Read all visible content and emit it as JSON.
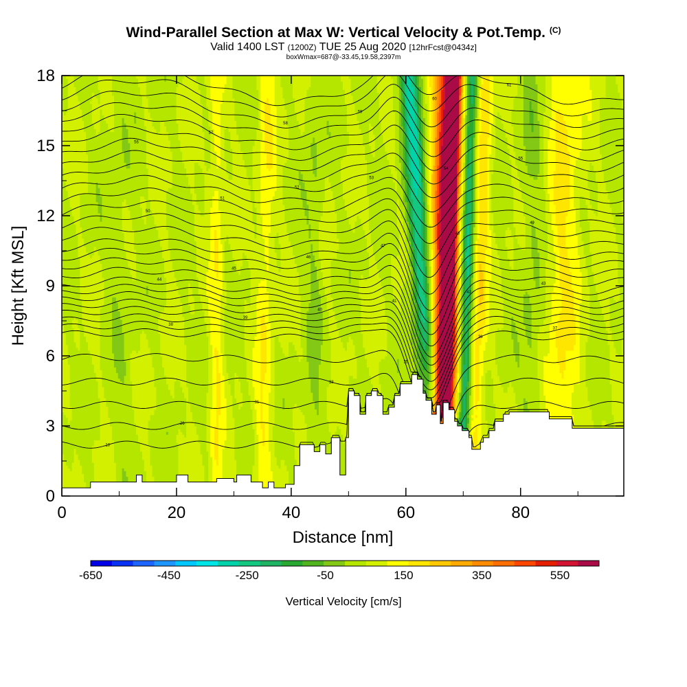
{
  "title": {
    "main": "Wind-Parallel Section at Max W: Vertical Velocity & Pot.Temp.",
    "copyright": "(C)",
    "valid_prefix": "Valid 1400 LST",
    "valid_z": "(1200Z)",
    "valid_date": "TUE 25 Aug 2020",
    "valid_fcst": "[12hrFcst@0434z]",
    "box": "boxWmax=687@-33.45,19.58,2397m"
  },
  "chart_data": {
    "type": "heatmap",
    "xlabel": "Distance [nm]",
    "ylabel": "Height [Kft MSL]",
    "xlim": [
      0,
      98
    ],
    "ylim": [
      0,
      18
    ],
    "xticks": [
      0,
      20,
      40,
      60,
      80
    ],
    "yticks": [
      0,
      3,
      6,
      9,
      12,
      15,
      18
    ],
    "colorbar": {
      "label": "Vertical Velocity [cm/s]",
      "range": [
        -650,
        650
      ],
      "ticks": [
        -650,
        -450,
        -250,
        -50,
        150,
        350,
        550
      ],
      "colors": [
        "#0000e6",
        "#0a32f5",
        "#1e64ff",
        "#1e96ff",
        "#00c8ff",
        "#00e6e6",
        "#00d2aa",
        "#14c882",
        "#1eb464",
        "#28aa32",
        "#50b41e",
        "#82c814",
        "#b4e600",
        "#d2f000",
        "#ffff00",
        "#ffe600",
        "#ffc800",
        "#ffaa00",
        "#ff8c00",
        "#ff6e00",
        "#ff4600",
        "#e61e00",
        "#d21432",
        "#aa0a46"
      ]
    },
    "background_w": 50,
    "w_features": [
      {
        "x": 67.2,
        "x_bottom": 66.7,
        "x_top": 68.5,
        "w": 640,
        "width": 0.8
      },
      {
        "x": 66.5,
        "x_bottom": 66.3,
        "x_top": 67.8,
        "w": 450,
        "width": 1.8
      },
      {
        "x": 65.8,
        "x_bottom": 65.8,
        "x_top": 67.0,
        "w": 250,
        "width": 3.2
      },
      {
        "x": 64.0,
        "x_bottom": 64.5,
        "x_top": 60.5,
        "w": -250,
        "width": 1.6
      },
      {
        "x": 65.0,
        "x_bottom": 65.0,
        "x_top": 61.5,
        "w": -100,
        "width": 2.6
      },
      {
        "x": 70.5,
        "x_bottom": 70.0,
        "x_top": 71.5,
        "w": -300,
        "width": 1.1
      },
      {
        "x": 72.0,
        "x_bottom": 72.0,
        "x_top": 74.0,
        "w": 150,
        "width": 1.4
      },
      {
        "x": 88.0,
        "x_bottom": 87.0,
        "x_top": 88.0,
        "w": 120,
        "width": 3.0
      },
      {
        "x": 82.0,
        "x_bottom": 82.0,
        "x_top": 82.0,
        "w": -60,
        "width": 2.0
      },
      {
        "x": 35.0,
        "x_bottom": 35.0,
        "x_top": 36.0,
        "w": 100,
        "width": 1.5
      },
      {
        "x": 27.0,
        "x_bottom": 27.0,
        "x_top": 27.0,
        "w": 100,
        "width": 1.2
      },
      {
        "x": 44.0,
        "x_bottom": 44.0,
        "x_top": 44.0,
        "w": -50,
        "width": 1.5
      },
      {
        "x": 10.0,
        "x_bottom": 10.0,
        "x_top": 10.0,
        "w": -30,
        "width": 2.5
      }
    ],
    "terrain": [
      [
        0,
        0.35
      ],
      [
        5,
        0.35
      ],
      [
        5,
        0.6
      ],
      [
        13,
        0.6
      ],
      [
        13,
        0.9
      ],
      [
        14,
        0.9
      ],
      [
        14,
        0.6
      ],
      [
        20,
        0.6
      ],
      [
        20,
        0.9
      ],
      [
        22,
        0.9
      ],
      [
        22,
        0.6
      ],
      [
        27,
        0.6
      ],
      [
        27,
        0.75
      ],
      [
        30,
        0.75
      ],
      [
        30,
        0.6
      ],
      [
        30.5,
        0.6
      ],
      [
        30.5,
        0.9
      ],
      [
        33,
        0.9
      ],
      [
        33,
        0.6
      ],
      [
        35,
        0.6
      ],
      [
        35,
        0.35
      ],
      [
        36,
        0.35
      ],
      [
        36,
        0.6
      ],
      [
        37,
        0.6
      ],
      [
        37,
        0.35
      ],
      [
        39,
        0.35
      ],
      [
        39,
        0.5
      ],
      [
        40.5,
        0.5
      ],
      [
        40.5,
        1.3
      ],
      [
        41.5,
        1.3
      ],
      [
        41.5,
        2.2
      ],
      [
        44,
        2.2
      ],
      [
        44,
        1.9
      ],
      [
        45,
        1.9
      ],
      [
        45,
        2.2
      ],
      [
        46,
        2.2
      ],
      [
        46,
        1.8
      ],
      [
        47,
        1.8
      ],
      [
        47,
        2.5
      ],
      [
        48.5,
        2.5
      ],
      [
        48.5,
        0.9
      ],
      [
        49.5,
        0.9
      ],
      [
        49.5,
        2.5
      ],
      [
        50,
        2.5
      ],
      [
        50,
        4.5
      ],
      [
        51,
        4.5
      ],
      [
        51,
        4.3
      ],
      [
        52,
        4.3
      ],
      [
        52,
        3.5
      ],
      [
        53,
        3.5
      ],
      [
        53,
        4.3
      ],
      [
        54,
        4.3
      ],
      [
        54,
        4.5
      ],
      [
        55,
        4.5
      ],
      [
        55,
        4.3
      ],
      [
        56,
        4.3
      ],
      [
        56,
        3.5
      ],
      [
        57,
        3.5
      ],
      [
        57,
        3.8
      ],
      [
        58,
        3.8
      ],
      [
        58,
        4.3
      ],
      [
        59,
        4.3
      ],
      [
        59,
        4.8
      ],
      [
        61,
        4.8
      ],
      [
        61,
        5.2
      ],
      [
        62,
        5.2
      ],
      [
        62,
        5.0
      ],
      [
        63,
        5.0
      ],
      [
        63,
        4.4
      ],
      [
        63.5,
        4.4
      ],
      [
        63.5,
        4.1
      ],
      [
        64.5,
        4.1
      ],
      [
        64.5,
        3.5
      ],
      [
        65.3,
        3.5
      ],
      [
        65.3,
        3.9
      ],
      [
        66.0,
        3.9
      ],
      [
        66.0,
        3.1
      ],
      [
        66.5,
        3.1
      ],
      [
        66.5,
        4.0
      ],
      [
        67.5,
        4.0
      ],
      [
        67.5,
        3.7
      ],
      [
        68.5,
        3.7
      ],
      [
        68.5,
        3.2
      ],
      [
        69,
        3.2
      ],
      [
        69,
        3.0
      ],
      [
        69.8,
        3.0
      ],
      [
        69.8,
        2.8
      ],
      [
        71,
        2.8
      ],
      [
        71,
        2.5
      ],
      [
        71.5,
        2.5
      ],
      [
        71.5,
        2.0
      ],
      [
        73,
        2.0
      ],
      [
        73,
        2.3
      ],
      [
        73.5,
        2.3
      ],
      [
        73.5,
        2.5
      ],
      [
        74.5,
        2.5
      ],
      [
        74.5,
        2.8
      ],
      [
        75.5,
        2.8
      ],
      [
        75.5,
        3.2
      ],
      [
        77,
        3.2
      ],
      [
        77,
        3.5
      ],
      [
        78,
        3.5
      ],
      [
        78,
        3.6
      ],
      [
        85,
        3.6
      ],
      [
        85,
        3.3
      ],
      [
        89,
        3.3
      ],
      [
        89,
        2.9
      ],
      [
        98,
        2.9
      ]
    ],
    "theta_contours": {
      "min_height_kft": 2,
      "levels_kft": [
        2.2,
        3.0,
        3.9,
        4.9,
        5.9,
        6.9,
        7.2,
        7.5,
        7.8,
        8.1,
        8.4,
        8.7,
        9.0,
        9.4,
        9.8,
        10.2,
        10.6,
        11.1,
        11.6,
        12.1,
        12.6,
        13.1,
        13.6,
        14.1,
        14.6,
        15.1,
        15.6,
        16.1,
        16.6,
        17.1,
        17.6
      ],
      "labels": [
        "18",
        "26",
        "31",
        "33",
        "35",
        "36",
        "37",
        "38",
        "39",
        "40",
        "41",
        "42",
        "43",
        "44",
        "45",
        "46",
        "47",
        "48",
        "49",
        "50",
        "51",
        "52",
        "53",
        "54",
        "55",
        "56",
        "57",
        "58",
        "59",
        "60",
        "61"
      ]
    }
  }
}
